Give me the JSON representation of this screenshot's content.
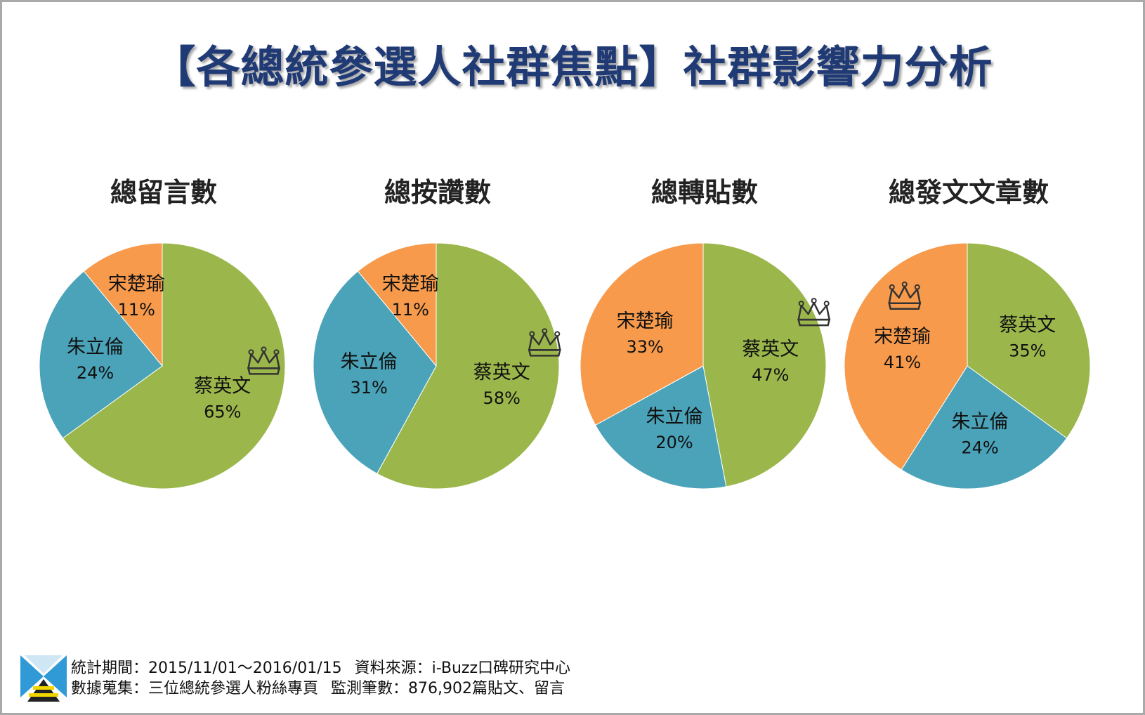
{
  "title": "【各總統參選人社群焦點】社群影響力分析",
  "colors": {
    "tsai": "#9bb74b",
    "chu": "#4aa3b8",
    "soong": "#f79a4b",
    "title": "#1f3a74"
  },
  "chart_data": [
    {
      "type": "pie",
      "title": "總留言數",
      "winner": "蔡英文",
      "slices": [
        {
          "name": "蔡英文",
          "value": 65,
          "label": "65%"
        },
        {
          "name": "朱立倫",
          "value": 24,
          "label": "24%"
        },
        {
          "name": "宋楚瑜",
          "value": 11,
          "label": "11%"
        }
      ]
    },
    {
      "type": "pie",
      "title": "總按讚數",
      "winner": "蔡英文",
      "slices": [
        {
          "name": "蔡英文",
          "value": 58,
          "label": "58%"
        },
        {
          "name": "朱立倫",
          "value": 31,
          "label": "31%"
        },
        {
          "name": "宋楚瑜",
          "value": 11,
          "label": "11%"
        }
      ]
    },
    {
      "type": "pie",
      "title": "總轉貼數",
      "winner": "蔡英文",
      "slices": [
        {
          "name": "蔡英文",
          "value": 47,
          "label": "47%"
        },
        {
          "name": "朱立倫",
          "value": 20,
          "label": "20%"
        },
        {
          "name": "宋楚瑜",
          "value": 33,
          "label": "33%"
        }
      ]
    },
    {
      "type": "pie",
      "title": "總發文文章數",
      "winner": "宋楚瑜",
      "slices": [
        {
          "name": "蔡英文",
          "value": 35,
          "label": "35%"
        },
        {
          "name": "朱立倫",
          "value": 24,
          "label": "24%"
        },
        {
          "name": "宋楚瑜",
          "value": 41,
          "label": "41%"
        }
      ]
    }
  ],
  "footer": {
    "period": "統計期間：2015/11/01～2016/01/15",
    "source": "資料來源：i-Buzz口碑研究中心",
    "collection": "數據蒐集：三位總統參選人粉絲專頁",
    "count": "監測筆數：876,902篇貼文、留言"
  }
}
